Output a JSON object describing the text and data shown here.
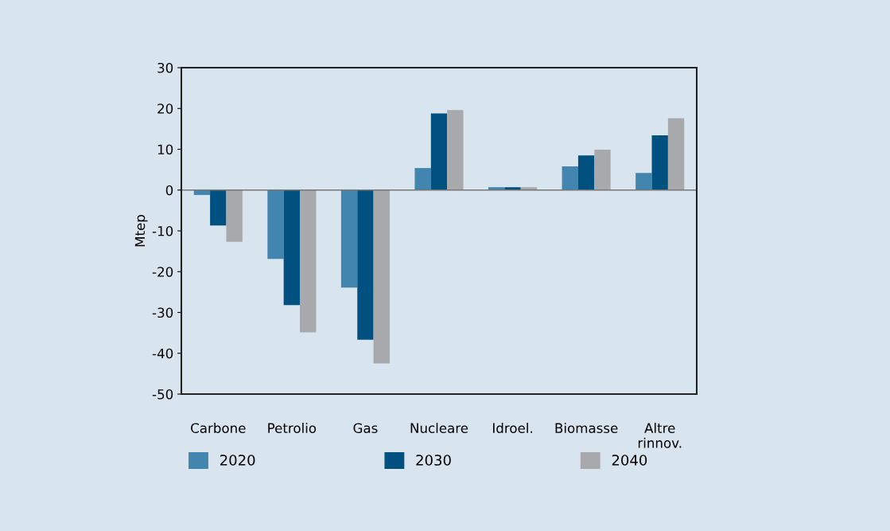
{
  "chart_data": {
    "type": "bar",
    "ylabel": "Mtep",
    "categories": [
      "Carbone",
      "Petrolio",
      "Gas",
      "Nucleare",
      "Idroel.",
      "Biomasse",
      "Altre\nrinnov."
    ],
    "series": [
      {
        "name": "2020",
        "color": "#4286b0",
        "values": [
          -1.2,
          -16.9,
          -23.9,
          5.4,
          0.7,
          5.8,
          4.2
        ]
      },
      {
        "name": "2030",
        "color": "#00517f",
        "values": [
          -8.7,
          -28.2,
          -36.7,
          18.8,
          0.7,
          8.5,
          13.4
        ]
      },
      {
        "name": "2040",
        "color": "#a7a9ac",
        "values": [
          -12.7,
          -34.9,
          -42.5,
          19.6,
          0.7,
          9.9,
          17.6
        ]
      }
    ],
    "ylim": [
      -50,
      30
    ],
    "yticks": [
      -50,
      -40,
      -30,
      -20,
      -10,
      0,
      10,
      20,
      30
    ],
    "ref_lines": [
      {
        "axis": "y",
        "value": 0,
        "color": "#777777"
      }
    ],
    "legend": "bottom"
  }
}
